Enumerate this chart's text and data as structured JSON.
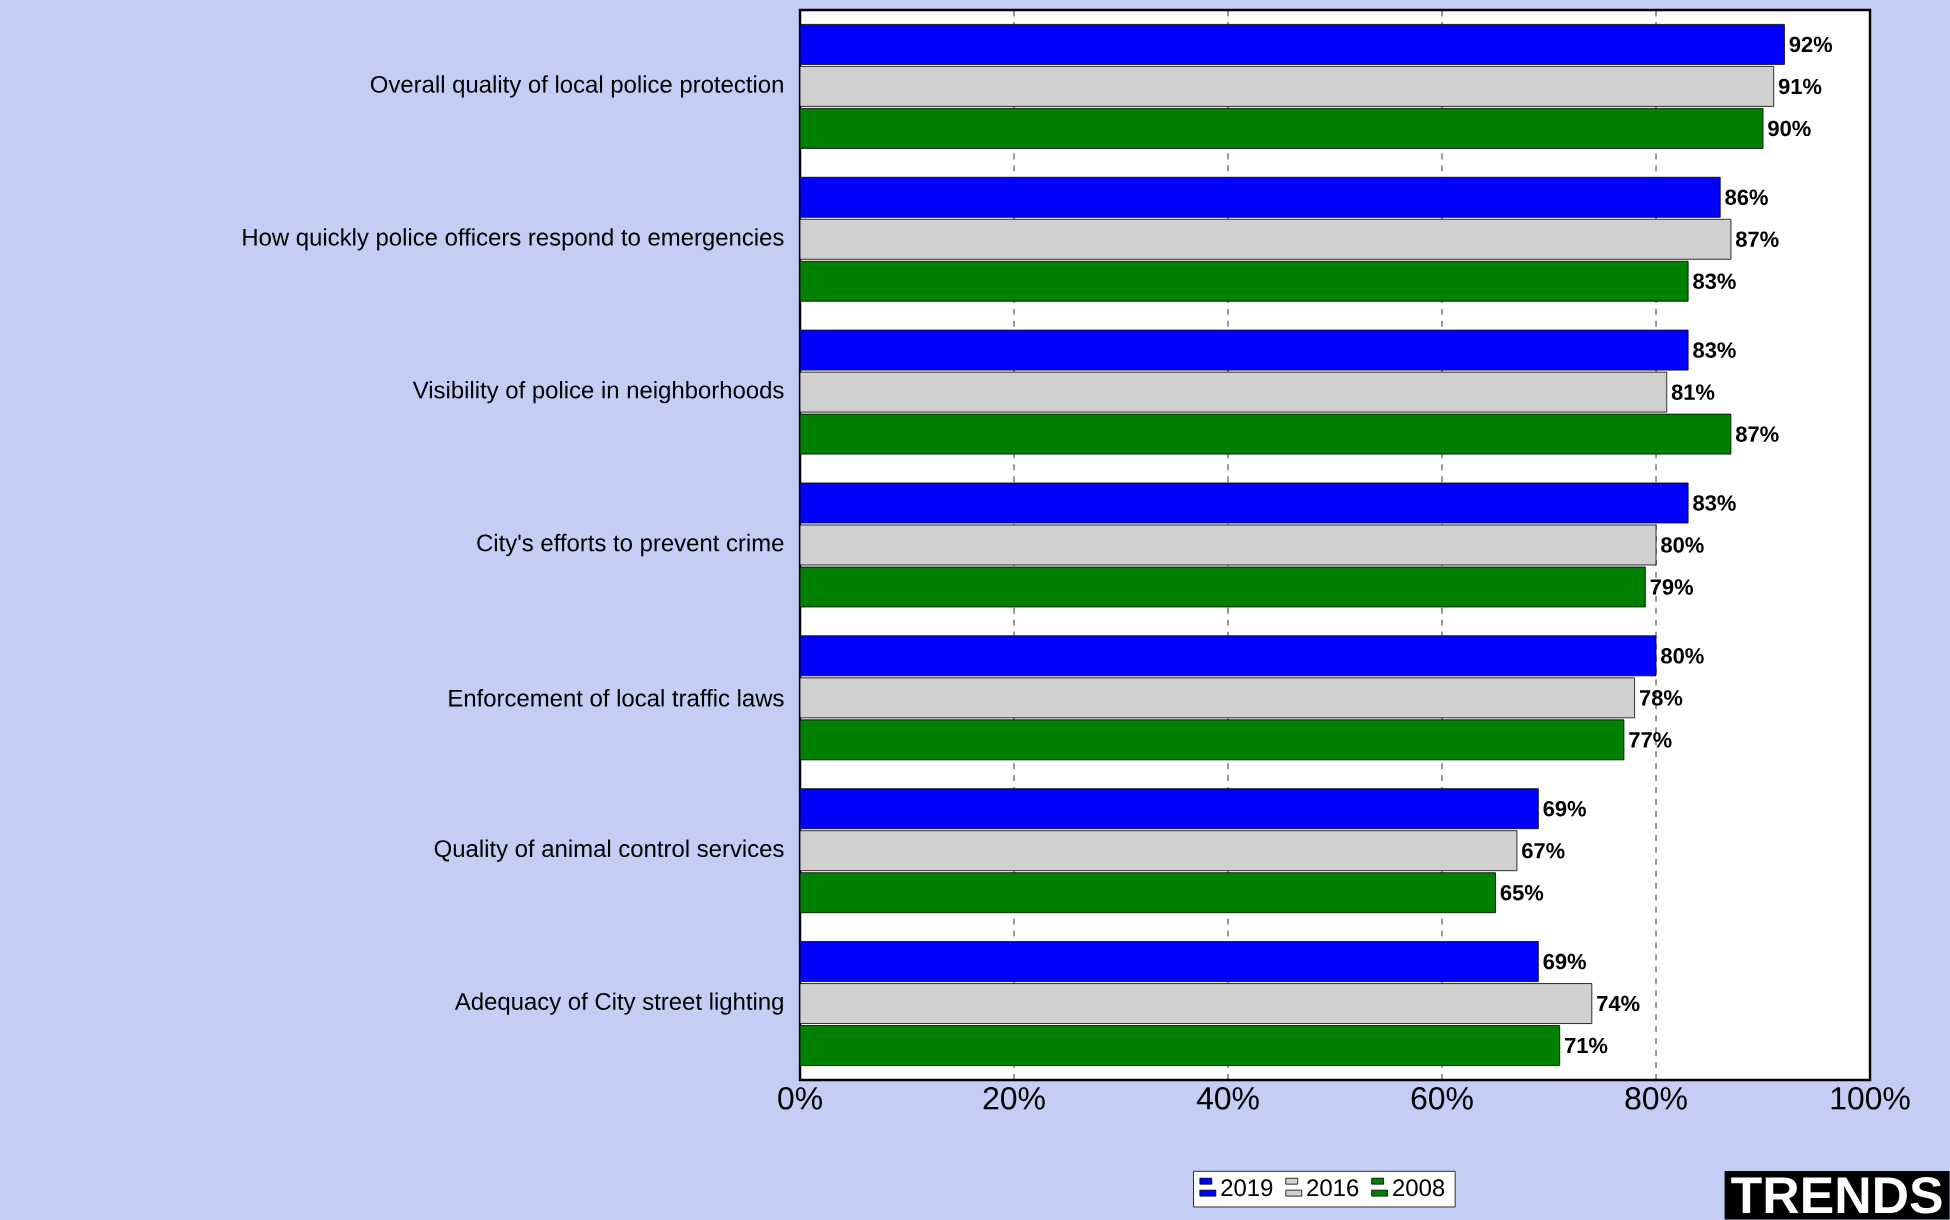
{
  "chart_data": {
    "type": "bar",
    "orientation": "horizontal",
    "categories": [
      "Overall quality of local police protection",
      "How quickly police officers respond to emergencies",
      "Visibility of police in neighborhoods",
      "City's efforts to prevent crime",
      "Enforcement of local traffic laws",
      "Quality of animal control services",
      "Adequacy of City street lighting"
    ],
    "series": [
      {
        "name": "2019",
        "color": "#0000ff",
        "values": [
          92,
          86,
          83,
          83,
          80,
          69,
          69
        ],
        "value_labels": [
          "92%",
          "86%",
          "83%",
          "83%",
          "80%",
          "69%",
          "69%"
        ]
      },
      {
        "name": "2016",
        "color": "#d0d0d0",
        "values": [
          91,
          87,
          81,
          80,
          78,
          67,
          74
        ],
        "value_labels": [
          "91%",
          "87%",
          "81%",
          "80%",
          "78%",
          "67%",
          "74%"
        ]
      },
      {
        "name": "2008",
        "color": "#008000",
        "values": [
          90,
          83,
          87,
          79,
          77,
          65,
          71
        ],
        "value_labels": [
          "90%",
          "83%",
          "87%",
          "79%",
          "77%",
          "65%",
          "71%"
        ]
      }
    ],
    "xlim": [
      0,
      100
    ],
    "xticks": [
      {
        "value": 0,
        "label": "0%"
      },
      {
        "value": 20,
        "label": "20%"
      },
      {
        "value": 40,
        "label": "40%"
      },
      {
        "value": 60,
        "label": "60%"
      },
      {
        "value": 80,
        "label": "80%"
      },
      {
        "value": 100,
        "label": "100%"
      }
    ],
    "grid": "x",
    "legend": "bottom",
    "annotations": [
      "TRENDS"
    ]
  }
}
